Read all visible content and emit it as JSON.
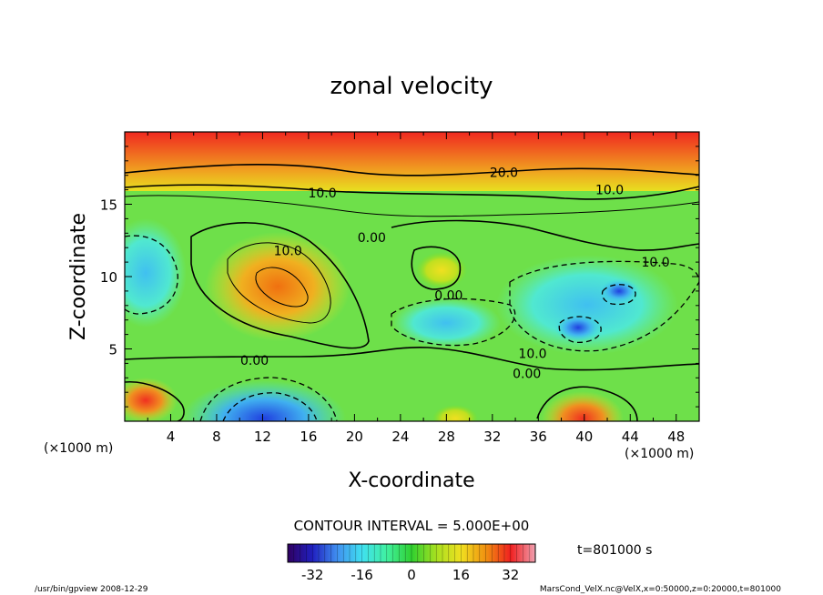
{
  "chart_data": {
    "type": "heatmap",
    "title": "zonal velocity",
    "xlabel": "X-coordinate",
    "ylabel": "Z-coordinate",
    "x_unit": "(×1000 m)",
    "y_unit": "(×1000 m)",
    "xlim": [
      0,
      50
    ],
    "ylim": [
      0,
      20
    ],
    "x_ticks": [
      "4",
      "8",
      "12",
      "16",
      "20",
      "24",
      "28",
      "32",
      "36",
      "40",
      "44",
      "48"
    ],
    "y_ticks": [
      "5",
      "10",
      "15"
    ],
    "contour_interval": "CONTOUR INTERVAL = 5.000E+00",
    "contour_labels": [
      {
        "text": "20.0",
        "x": 33,
        "z": 17.2
      },
      {
        "text": "10.0",
        "x": 17.2,
        "z": 15.8
      },
      {
        "text": "10.0",
        "x": 42.2,
        "z": 16.0
      },
      {
        "text": "0.00",
        "x": 21.5,
        "z": 12.7
      },
      {
        "text": "10.0",
        "x": 14.2,
        "z": 11.8
      },
      {
        "text": "10.0",
        "x": 46.2,
        "z": 11.0
      },
      {
        "text": "0.00",
        "x": 28.2,
        "z": 8.7
      },
      {
        "text": "10.0",
        "x": 35.5,
        "z": 4.7
      },
      {
        "text": "0.00",
        "x": 11.3,
        "z": 4.2
      },
      {
        "text": "0.00",
        "x": 35.0,
        "z": 3.3
      }
    ],
    "colorbar": {
      "ticks": [
        "-32",
        "-16",
        "0",
        "16",
        "32"
      ],
      "min": -40,
      "max": 40,
      "colors": [
        "#300060",
        "#2020c0",
        "#4090f0",
        "#40e0f0",
        "#40f0a0",
        "#30d030",
        "#a8e020",
        "#f0e020",
        "#f09010",
        "#f02020",
        "#f0a0b0"
      ]
    },
    "time_label": "t=801000  s",
    "footer_left": "/usr/bin/gpview   2008-12-29",
    "footer_right": "MarsCond_VelX.nc@VelX,x=0:50000,z=0:20000,t=801000"
  }
}
